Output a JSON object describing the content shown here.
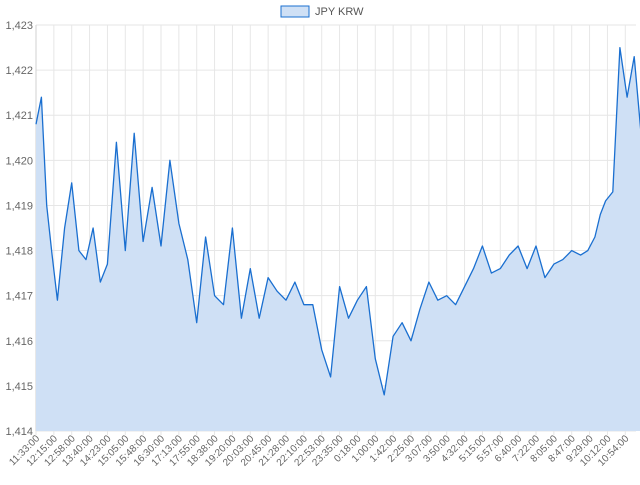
{
  "legend": {
    "label": "JPY KRW",
    "swatch_fill": "#cfe0f5",
    "swatch_stroke": "#1a6fd0"
  },
  "colors": {
    "line": "#1a6fd0",
    "area": "#cfe0f5",
    "grid": "#e6e6e6",
    "axis_text": "#666666"
  },
  "chart_data": {
    "type": "area",
    "title": "",
    "xlabel": "",
    "ylabel": "",
    "ylim": [
      1414,
      1423
    ],
    "grid": true,
    "legend_position": "top-center",
    "y_ticks": [
      "1,414",
      "1,415",
      "1,416",
      "1,417",
      "1,418",
      "1,419",
      "1,420",
      "1,421",
      "1,422",
      "1,423"
    ],
    "x_ticks": [
      "11:33:00",
      "12:15:00",
      "12:58:00",
      "13:40:00",
      "14:23:00",
      "15:05:00",
      "15:48:00",
      "16:30:00",
      "17:13:00",
      "17:55:00",
      "18:38:00",
      "19:20:00",
      "20:03:00",
      "20:45:00",
      "21:28:00",
      "22:10:00",
      "22:53:00",
      "23:35:00",
      "0:18:00",
      "1:00:00",
      "1:42:00",
      "2:25:00",
      "3:07:00",
      "3:50:00",
      "4:32:00",
      "5:15:00",
      "5:57:00",
      "6:40:00",
      "7:22:00",
      "8:05:00",
      "8:47:00",
      "9:29:00",
      "10:12:00",
      "10:54:00"
    ],
    "series": [
      {
        "name": "JPY KRW",
        "x": [
          0,
          0.3,
          0.6,
          0.9,
          1.2,
          1.6,
          2.0,
          2.4,
          2.8,
          3.2,
          3.6,
          4.0,
          4.5,
          5.0,
          5.5,
          6.0,
          6.5,
          7.0,
          7.5,
          8.0,
          8.5,
          9.0,
          9.5,
          10.0,
          10.5,
          11.0,
          11.5,
          12.0,
          12.5,
          13.0,
          13.5,
          14.0,
          14.5,
          15.0,
          15.5,
          16.0,
          16.5,
          17.0,
          17.5,
          18.0,
          18.5,
          19.0,
          19.5,
          20.0,
          20.5,
          21.0,
          21.5,
          22.0,
          22.5,
          23.0,
          23.5,
          24.0,
          24.5,
          25.0,
          25.5,
          26.0,
          26.5,
          27.0,
          27.5,
          28.0,
          28.5,
          29.0,
          29.5,
          30.0,
          30.5,
          30.9,
          31.3,
          31.6,
          31.9,
          32.3,
          32.7,
          33.1,
          33.5,
          33.9,
          34.3
        ],
        "values": [
          1420.8,
          1421.4,
          1419.0,
          1417.9,
          1416.9,
          1418.5,
          1419.5,
          1418.0,
          1417.8,
          1418.5,
          1417.3,
          1417.7,
          1420.4,
          1418.0,
          1420.6,
          1418.2,
          1419.4,
          1418.1,
          1420.0,
          1418.6,
          1417.8,
          1416.4,
          1418.3,
          1417.0,
          1416.8,
          1418.5,
          1416.5,
          1417.6,
          1416.5,
          1417.4,
          1417.1,
          1416.9,
          1417.3,
          1416.8,
          1416.8,
          1415.8,
          1415.2,
          1417.2,
          1416.5,
          1416.9,
          1417.2,
          1415.6,
          1414.8,
          1416.1,
          1416.4,
          1416.0,
          1416.7,
          1417.3,
          1416.9,
          1417.0,
          1416.8,
          1417.2,
          1417.6,
          1418.1,
          1417.5,
          1417.6,
          1417.9,
          1418.1,
          1417.6,
          1418.1,
          1417.4,
          1417.7,
          1417.8,
          1418.0,
          1417.9,
          1418.0,
          1418.3,
          1418.8,
          1419.1,
          1419.3,
          1422.5,
          1421.4,
          1422.3,
          1420.5,
          1420.7
        ]
      }
    ]
  }
}
